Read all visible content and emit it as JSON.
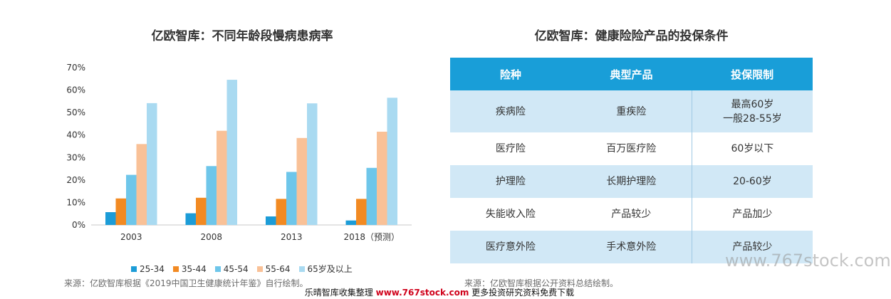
{
  "chart_data": {
    "type": "bar",
    "title": "亿欧智库：不同年龄段慢病患病率",
    "categories": [
      "2003",
      "2008",
      "2013",
      "2018（预测）"
    ],
    "y_ticks": [
      "0%",
      "10%",
      "20%",
      "30%",
      "40%",
      "50%",
      "60%",
      "70%"
    ],
    "ylim": [
      0,
      70
    ],
    "grid": false,
    "legend_position": "bottom",
    "series": [
      {
        "name": "25-34",
        "color": "#1c9cd7",
        "values": [
          5.7,
          5.2,
          3.8,
          2.0
        ]
      },
      {
        "name": "35-44",
        "color": "#f28a22",
        "values": [
          11.8,
          12.1,
          11.6,
          11.6
        ]
      },
      {
        "name": "45-54",
        "color": "#6ec6ea",
        "values": [
          22.3,
          26.2,
          23.6,
          25.4
        ]
      },
      {
        "name": "55-64",
        "color": "#f9c197",
        "values": [
          36.0,
          41.9,
          38.7,
          41.5
        ]
      },
      {
        "name": "65岁及以上",
        "color": "#a9daf1",
        "values": [
          54.2,
          64.6,
          54.1,
          56.6
        ]
      }
    ]
  },
  "left_source": "来源：亿欧智库根据《2019中国卫生健康统计年鉴》自行绘制。",
  "table": {
    "title": "亿欧智库：健康险险产品的投保条件",
    "headers": [
      "险种",
      "典型产品",
      "投保限制"
    ],
    "rows": [
      {
        "type": "疾病险",
        "product": "重疾险",
        "limit": "最高60岁\n一般28-55岁"
      },
      {
        "type": "医疗险",
        "product": "百万医疗险",
        "limit": "60岁以下"
      },
      {
        "type": "护理险",
        "product": "长期护理险",
        "limit": "20-60岁"
      },
      {
        "type": "失能收入险",
        "product": "产品较少",
        "limit": "产品加少"
      },
      {
        "type": "医疗意外险",
        "product": "手术意外险",
        "limit": "产品较少"
      }
    ]
  },
  "right_source": "来源：亿欧智库根据公开资料总结绘制。",
  "watermark": "www.767stock.com",
  "footer": {
    "prefix": "乐晴智库收集整理 ",
    "url": "www.767stock.com",
    "suffix": " 更多投资研究资料免费下载"
  }
}
